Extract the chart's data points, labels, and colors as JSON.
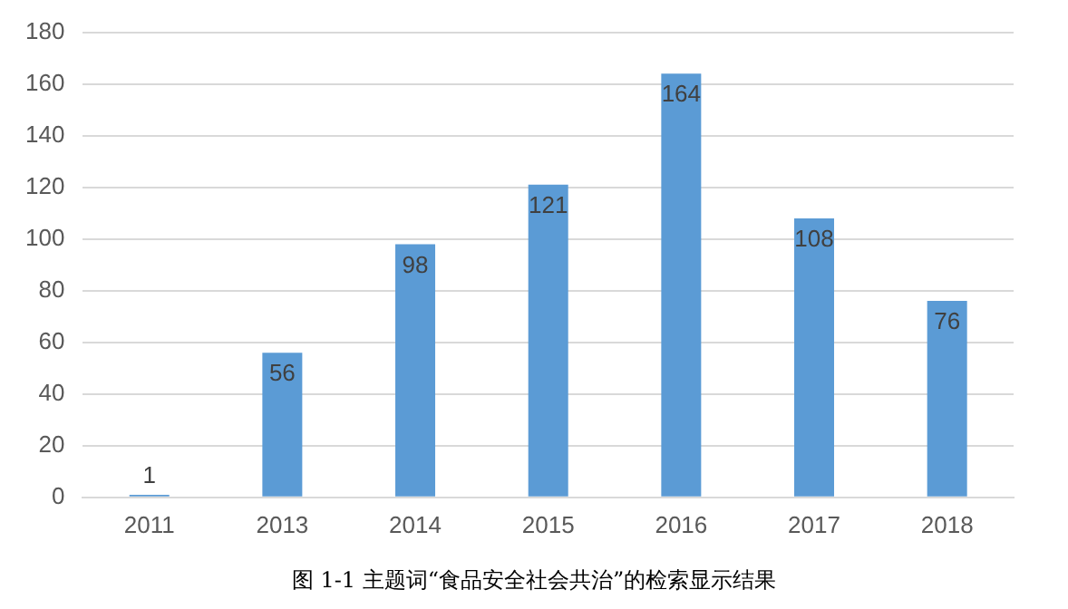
{
  "chart_data": {
    "type": "bar",
    "categories": [
      "2011",
      "2013",
      "2014",
      "2015",
      "2016",
      "2017",
      "2018"
    ],
    "values": [
      1,
      56,
      98,
      121,
      164,
      108,
      76
    ],
    "color": "#5b9bd5",
    "ylim": [
      0,
      180
    ],
    "yticks": [
      0,
      20,
      40,
      60,
      80,
      100,
      120,
      140,
      160,
      180
    ],
    "grid": "y",
    "data_labels": true,
    "legend": false,
    "annotations": [
      "图 1-1  主题词“食品安全社会共治”的检索显示结果"
    ]
  }
}
